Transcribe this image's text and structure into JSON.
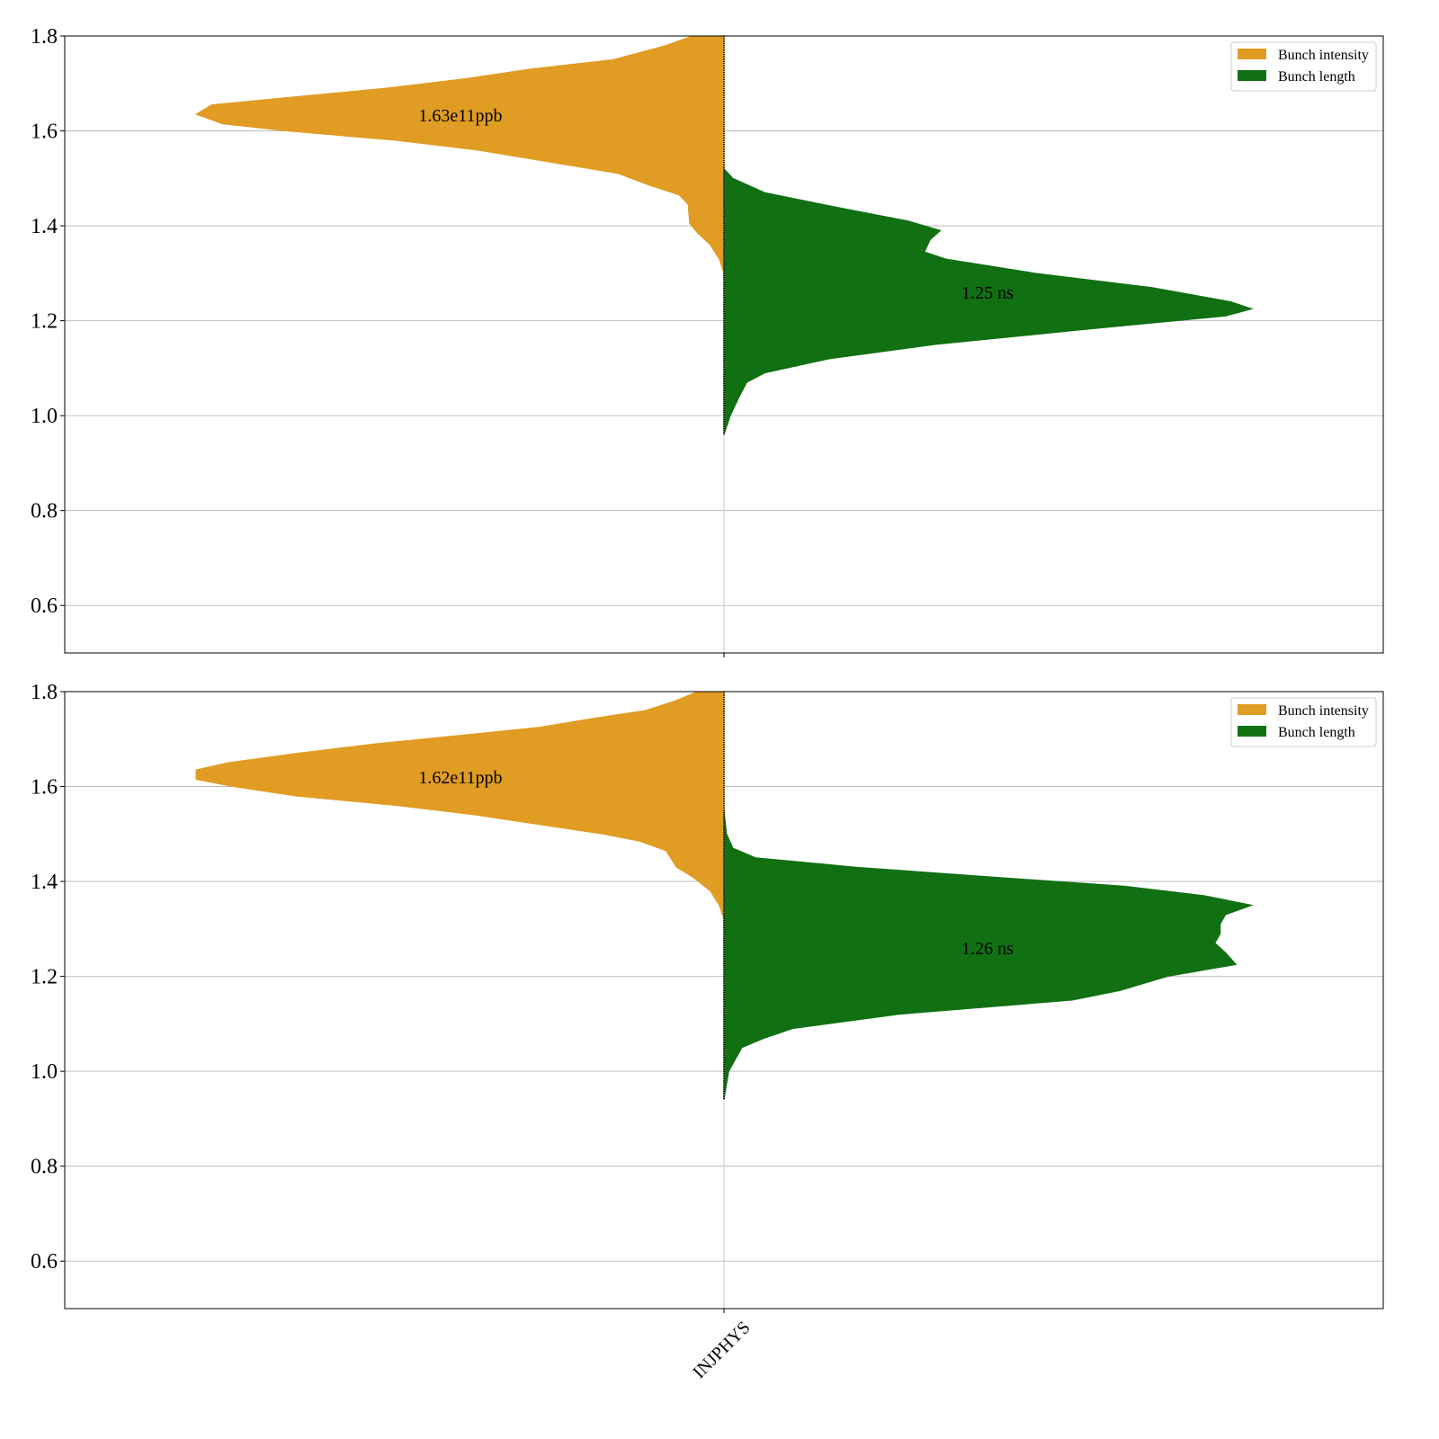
{
  "chart_data": [
    {
      "type": "violin",
      "split": true,
      "ylim": [
        0.5,
        1.8
      ],
      "yticks": [
        "0.6",
        "0.8",
        "1.0",
        "1.2",
        "1.4",
        "1.6",
        "1.8"
      ],
      "grid": true,
      "categories": [
        "INJPHYS"
      ],
      "show_xtick_labels": false,
      "legend": {
        "placement": "top-right",
        "entries": [
          {
            "label": "Bunch intensity",
            "color": "#e09c23"
          },
          {
            "label": "Bunch length",
            "color": "#117012"
          }
        ]
      },
      "series": [
        {
          "name": "Bunch intensity",
          "side": "left",
          "color": "#e09c23",
          "annotation": "1.63e11ppb",
          "annotation_y": 1.633,
          "profile": [
            [
              1.8,
              0.06
            ],
            [
              1.78,
              0.11
            ],
            [
              1.75,
              0.21
            ],
            [
              1.73,
              0.37
            ],
            [
              1.71,
              0.49
            ],
            [
              1.69,
              0.64
            ],
            [
              1.67,
              0.83
            ],
            [
              1.655,
              0.97
            ],
            [
              1.635,
              1.0
            ],
            [
              1.615,
              0.95
            ],
            [
              1.6,
              0.83
            ],
            [
              1.58,
              0.62
            ],
            [
              1.56,
              0.47
            ],
            [
              1.54,
              0.36
            ],
            [
              1.51,
              0.2
            ],
            [
              1.485,
              0.14
            ],
            [
              1.465,
              0.085
            ],
            [
              1.445,
              0.068
            ],
            [
              1.405,
              0.065
            ],
            [
              1.385,
              0.05
            ],
            [
              1.36,
              0.026
            ],
            [
              1.33,
              0.009
            ],
            [
              1.3,
              0
            ]
          ]
        },
        {
          "name": "Bunch length",
          "side": "right",
          "color": "#117012",
          "annotation": "1.25 ns",
          "annotation_y": 1.26,
          "profile": [
            [
              1.52,
              0
            ],
            [
              1.5,
              0.017
            ],
            [
              1.47,
              0.077
            ],
            [
              1.44,
              0.21
            ],
            [
              1.41,
              0.35
            ],
            [
              1.39,
              0.41
            ],
            [
              1.37,
              0.39
            ],
            [
              1.345,
              0.38
            ],
            [
              1.33,
              0.42
            ],
            [
              1.3,
              0.59
            ],
            [
              1.27,
              0.81
            ],
            [
              1.24,
              0.96
            ],
            [
              1.225,
              1.0
            ],
            [
              1.21,
              0.95
            ],
            [
              1.18,
              0.67
            ],
            [
              1.15,
              0.4
            ],
            [
              1.12,
              0.2
            ],
            [
              1.09,
              0.077
            ],
            [
              1.07,
              0.043
            ],
            [
              1.04,
              0.029
            ],
            [
              1.0,
              0.012
            ],
            [
              0.96,
              0
            ]
          ]
        }
      ]
    },
    {
      "type": "violin",
      "split": true,
      "ylim": [
        0.5,
        1.8
      ],
      "yticks": [
        "0.6",
        "0.8",
        "1.0",
        "1.2",
        "1.4",
        "1.6",
        "1.8"
      ],
      "grid": true,
      "categories": [
        "INJPHYS"
      ],
      "show_xtick_labels": true,
      "legend": {
        "placement": "top-right",
        "entries": [
          {
            "label": "Bunch intensity",
            "color": "#e09c23"
          },
          {
            "label": "Bunch length",
            "color": "#117012"
          }
        ]
      },
      "series": [
        {
          "name": "Bunch intensity",
          "side": "left",
          "color": "#e09c23",
          "annotation": "1.62e11ppb",
          "annotation_y": 1.62,
          "profile": [
            [
              1.8,
              0.05
            ],
            [
              1.78,
              0.094
            ],
            [
              1.76,
              0.15
            ],
            [
              1.745,
              0.24
            ],
            [
              1.725,
              0.35
            ],
            [
              1.71,
              0.48
            ],
            [
              1.69,
              0.66
            ],
            [
              1.67,
              0.81
            ],
            [
              1.65,
              0.94
            ],
            [
              1.635,
              1.0
            ],
            [
              1.615,
              1.0
            ],
            [
              1.6,
              0.93
            ],
            [
              1.58,
              0.81
            ],
            [
              1.56,
              0.62
            ],
            [
              1.54,
              0.47
            ],
            [
              1.52,
              0.35
            ],
            [
              1.5,
              0.23
            ],
            [
              1.485,
              0.16
            ],
            [
              1.465,
              0.11
            ],
            [
              1.43,
              0.09
            ],
            [
              1.41,
              0.06
            ],
            [
              1.38,
              0.026
            ],
            [
              1.35,
              0.009
            ],
            [
              1.32,
              0
            ]
          ]
        },
        {
          "name": "Bunch length",
          "side": "right",
          "color": "#117012",
          "annotation": "1.26 ns",
          "annotation_y": 1.26,
          "profile": [
            [
              1.55,
              0
            ],
            [
              1.5,
              0.005
            ],
            [
              1.47,
              0.017
            ],
            [
              1.45,
              0.06
            ],
            [
              1.43,
              0.25
            ],
            [
              1.41,
              0.5
            ],
            [
              1.39,
              0.76
            ],
            [
              1.37,
              0.91
            ],
            [
              1.35,
              1.0
            ],
            [
              1.33,
              0.95
            ],
            [
              1.31,
              0.94
            ],
            [
              1.29,
              0.94
            ],
            [
              1.27,
              0.93
            ],
            [
              1.25,
              0.95
            ],
            [
              1.225,
              0.97
            ],
            [
              1.2,
              0.84
            ],
            [
              1.17,
              0.75
            ],
            [
              1.15,
              0.66
            ],
            [
              1.12,
              0.33
            ],
            [
              1.09,
              0.13
            ],
            [
              1.07,
              0.077
            ],
            [
              1.05,
              0.034
            ],
            [
              1.0,
              0.009
            ],
            [
              0.94,
              0
            ]
          ]
        }
      ]
    }
  ]
}
